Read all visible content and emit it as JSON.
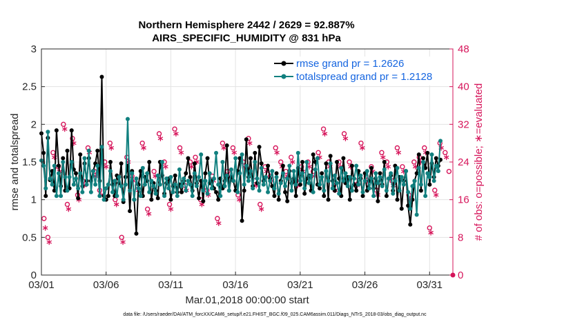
{
  "chart_data": {
    "type": "line",
    "title_line1": "Northern Hemisphere 2442 / 2629 = 92.887%",
    "title_line2": "AIRS_SPECIFIC_HUMIDITY @ 831 hPa",
    "xlabel": "Mar.01,2018 00:00:00 start",
    "ylabel_left": "rmse and totalspread",
    "ylabel_right": "# of obs: o=possible; ∗=evaluated",
    "xlim": [
      0,
      31.8
    ],
    "ylim_left": [
      0,
      3
    ],
    "ylim_right": [
      0,
      48
    ],
    "x_ticks": [
      {
        "label": "03/01",
        "value": 0
      },
      {
        "label": "03/06",
        "value": 5
      },
      {
        "label": "03/11",
        "value": 10
      },
      {
        "label": "03/16",
        "value": 15
      },
      {
        "label": "03/21",
        "value": 20
      },
      {
        "label": "03/26",
        "value": 25
      },
      {
        "label": "03/31",
        "value": 30
      }
    ],
    "y_ticks_left": [
      "0",
      "0.5",
      "1",
      "1.5",
      "2",
      "2.5",
      "3"
    ],
    "y_ticks_right": [
      "0",
      "8",
      "16",
      "24",
      "32",
      "40",
      "48"
    ],
    "footnote": "data file: /Users/raeder/DAI/ATM_forcXX/CAM6_setup/f.e21.FHIST_BGC.f09_025.CAM6assim.011/Diags_NTrS_2018-03/obs_diag_output.nc",
    "series": [
      {
        "name": "rmse grand pr = 1.2626",
        "color": "#000000",
        "marker": "filled-circle",
        "values": [
          1.88,
          1.62,
          1.05,
          1.82,
          1.26,
          1.38,
          1.12,
          1.92,
          1.45,
          1.18,
          1.55,
          1.12,
          1.65,
          1.15,
          1.92,
          1.4,
          1.35,
          1.02,
          1.6,
          1.18,
          1.48,
          1.25,
          1.55,
          1.25,
          1.38,
          1.48,
          1.65,
          1.25,
          2.63,
          1.05,
          1.0,
          1.05,
          1.5,
          1.2,
          1.05,
          1.32,
          1.22,
          1.48,
          0.97,
          1.3,
          1.45,
          0.85,
          1.38,
          1.0,
          0.55,
          1.2,
          1.38,
          1.05,
          1.3,
          1.25,
          1.5,
          1.0,
          1.22,
          1.12,
          1.02,
          1.5,
          1.32,
          1.08,
          1.22,
          1.28,
          1.0,
          1.18,
          1.32,
          1.1,
          1.2,
          1.1,
          1.25,
          1.35,
          1.55,
          1.3,
          1.12,
          1.48,
          1.22,
          1.02,
          1.25,
          0.98,
          1.35,
          1.55,
          1.22,
          1.25,
          1.15,
          1.1,
          1.0,
          1.28,
          1.15,
          1.25,
          1.72,
          1.12,
          1.3,
          1.25,
          1.12,
          1.38,
          1.55,
          0.72,
          1.12,
          1.8,
          1.3,
          1.55,
          1.18,
          1.62,
          1.22,
          1.7,
          1.48,
          1.25,
          1.3,
          1.45,
          1.28,
          1.18,
          1.05,
          1.35,
          1.0,
          1.25,
          1.45,
          1.1,
          0.98,
          1.38,
          1.22,
          1.28,
          1.05,
          1.42,
          1.2,
          1.5,
          1.08,
          1.28,
          1.32,
          1.12,
          1.6,
          1.5,
          1.2,
          1.15,
          1.35,
          1.05,
          1.48,
          1.0,
          1.58,
          1.25,
          1.12,
          1.5,
          1.28,
          1.05,
          1.55,
          1.22,
          1.3,
          1.0,
          1.45,
          1.2,
          1.12,
          1.38,
          1.28,
          1.05,
          1.35,
          1.12,
          1.25,
          1.42,
          1.15,
          1.28,
          0.98,
          1.35,
          1.2,
          1.5,
          1.05,
          1.28,
          1.32,
          1.12,
          1.45,
          1.0,
          1.3,
          0.88,
          1.25,
          1.38,
          0.92,
          0.67,
          1.0,
          1.25,
          1.35,
          1.6,
          1.12,
          1.55,
          1.42,
          1.62,
          1.2,
          1.48,
          1.3,
          1.55,
          1.45,
          1.53
        ],
        "step": 0.1667
      },
      {
        "name": "totalspread grand pr = 1.2128",
        "color": "#11807f",
        "marker": "filled-circle",
        "values": [
          1.52,
          1.45,
          1.15,
          1.9,
          1.28,
          1.2,
          1.45,
          1.05,
          1.35,
          1.05,
          1.5,
          1.3,
          1.12,
          1.3,
          1.5,
          1.2,
          1.28,
          1.15,
          1.35,
          1.1,
          1.55,
          1.2,
          1.65,
          1.1,
          1.38,
          1.2,
          1.45,
          1.05,
          1.7,
          1.0,
          1.15,
          1.2,
          1.38,
          1.1,
          1.25,
          1.05,
          1.3,
          1.18,
          1.0,
          1.2,
          2.07,
          1.12,
          1.35,
          1.0,
          1.28,
          1.15,
          1.05,
          1.42,
          1.2,
          1.35,
          1.1,
          1.25,
          1.18,
          1.08,
          1.32,
          1.2,
          1.5,
          1.05,
          1.28,
          1.15,
          1.3,
          1.1,
          1.2,
          1.05,
          1.4,
          1.18,
          1.28,
          1.12,
          1.25,
          1.2,
          1.05,
          1.35,
          1.18,
          1.3,
          1.6,
          1.12,
          1.25,
          1.08,
          1.35,
          1.15,
          1.28,
          1.62,
          1.2,
          1.05,
          1.5,
          1.18,
          1.32,
          1.12,
          1.4,
          1.25,
          1.55,
          1.1,
          1.35,
          1.6,
          1.2,
          1.45,
          1.25,
          1.38,
          1.15,
          1.5,
          1.28,
          1.12,
          1.42,
          1.2,
          1.3,
          1.1,
          1.25,
          1.38,
          1.15,
          1.3,
          1.08,
          1.22,
          1.35,
          1.18,
          1.28,
          1.45,
          1.12,
          1.38,
          1.2,
          1.62,
          1.25,
          1.35,
          1.15,
          1.5,
          1.22,
          1.32,
          1.1,
          1.4,
          1.55,
          1.2,
          1.3,
          1.12,
          1.38,
          1.25,
          1.48,
          1.15,
          1.32,
          1.22,
          1.08,
          1.42,
          1.25,
          1.35,
          1.18,
          1.3,
          1.12,
          1.28,
          1.45,
          1.2,
          1.32,
          1.1,
          1.25,
          1.38,
          1.15,
          1.28,
          1.05,
          1.35,
          1.22,
          1.3,
          1.18,
          1.4,
          1.12,
          1.28,
          1.35,
          1.08,
          1.25,
          1.42,
          1.12,
          1.3,
          1.2,
          1.38,
          1.1,
          0.88,
          1.18,
          1.25,
          0.8,
          1.42,
          1.2,
          1.5,
          1.05,
          1.35,
          1.3,
          1.6,
          1.25,
          1.45,
          1.38,
          1.78
        ],
        "step": 0.1667
      },
      {
        "name": "possible obs",
        "color": "#d6145a",
        "marker": "open-circle",
        "axis": "right",
        "x": [
          0.2,
          0.5,
          0.9,
          1.3,
          1.7,
          2.0,
          2.4,
          2.8,
          3.2,
          3.6,
          4.1,
          4.5,
          4.9,
          5.3,
          5.7,
          6.2,
          6.6,
          7.0,
          7.4,
          7.8,
          8.2,
          8.7,
          9.1,
          9.5,
          9.9,
          10.3,
          10.7,
          11.1,
          11.5,
          11.9,
          12.3,
          12.8,
          13.2,
          13.6,
          14.0,
          14.4,
          14.8,
          15.2,
          15.6,
          16.0,
          16.5,
          16.9,
          17.3,
          17.7,
          18.1,
          18.5,
          18.9,
          19.3,
          19.7,
          20.1,
          20.6,
          21.0,
          21.4,
          21.8,
          22.2,
          22.6,
          23.0,
          23.4,
          23.8,
          24.3,
          24.7,
          25.1,
          25.5,
          25.9,
          26.3,
          26.7,
          27.1,
          27.5,
          27.9,
          28.4,
          28.8,
          29.2,
          29.6,
          30.0,
          30.4,
          30.8,
          31.2,
          31.5
        ],
        "values": [
          12,
          8,
          26,
          23,
          32,
          15,
          29,
          17,
          20,
          27,
          22,
          18,
          24,
          28,
          16,
          8,
          25,
          21,
          19,
          28,
          14,
          22,
          30,
          24,
          15,
          31,
          27,
          19,
          24,
          25,
          16,
          18,
          21,
          12,
          28,
          22,
          27,
          17,
          24,
          29,
          20,
          15,
          23,
          21,
          27,
          24,
          22,
          25,
          20,
          23,
          24,
          22,
          26,
          31,
          24,
          19,
          24,
          30,
          24,
          20,
          28,
          21,
          23,
          18,
          26,
          24,
          20,
          27,
          23,
          17,
          24,
          25,
          27,
          10,
          18,
          28,
          26,
          22
        ]
      },
      {
        "name": "evaluated obs",
        "color": "#d6145a",
        "marker": "asterisk",
        "axis": "right",
        "x": [
          0.3,
          0.6,
          1.0,
          1.4,
          1.8,
          2.1,
          2.5,
          2.9,
          3.3,
          3.7,
          4.2,
          4.6,
          5.0,
          5.4,
          5.8,
          6.3,
          6.7,
          7.1,
          7.5,
          7.9,
          8.3,
          8.8,
          9.2,
          9.6,
          10.0,
          10.4,
          10.8,
          11.2,
          11.6,
          12.0,
          12.4,
          12.9,
          13.3,
          13.7,
          14.1,
          14.5,
          14.9,
          15.3,
          15.7,
          16.1,
          16.6,
          17.0,
          17.4,
          17.8,
          18.2,
          18.6,
          19.0,
          19.4,
          19.8,
          20.2,
          20.7,
          21.1,
          21.5,
          21.9,
          22.3,
          22.7,
          23.1,
          23.5,
          23.9,
          24.4,
          24.8,
          25.2,
          25.6,
          26.0,
          26.4,
          26.8,
          27.2,
          27.6,
          28.0,
          28.5,
          28.9,
          29.3,
          29.7,
          30.1,
          30.5,
          30.9,
          31.3
        ],
        "values": [
          10,
          7,
          25,
          22,
          31,
          14,
          28,
          16,
          19,
          26,
          21,
          17,
          23,
          27,
          15,
          7,
          24,
          20,
          18,
          27,
          13,
          21,
          29,
          23,
          14,
          30,
          26,
          18,
          23,
          24,
          15,
          17,
          20,
          11,
          27,
          21,
          26,
          16,
          23,
          28,
          19,
          14,
          22,
          20,
          26,
          23,
          21,
          24,
          19,
          22,
          23,
          21,
          25,
          30,
          23,
          18,
          23,
          29,
          23,
          19,
          27,
          20,
          22,
          17,
          25,
          23,
          19,
          26,
          22,
          16,
          23,
          24,
          26,
          9,
          17,
          27,
          25
        ]
      }
    ]
  }
}
